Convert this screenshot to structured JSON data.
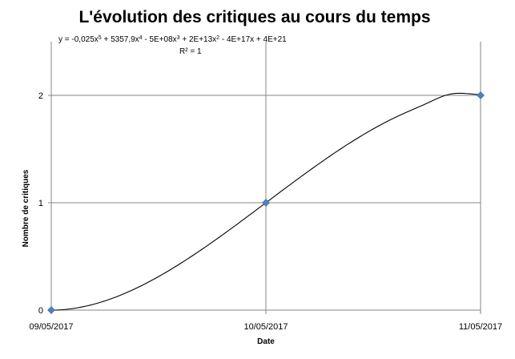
{
  "chart_data": {
    "type": "scatter",
    "title": "L'évolution des critiques au cours du temps",
    "xlabel": "Date",
    "ylabel": "Nombre de critiques",
    "x_categories": [
      "09/05/2017",
      "10/05/2017",
      "11/05/2017"
    ],
    "ylim": [
      0,
      2.5
    ],
    "y_ticks": [
      "0",
      "1",
      "2"
    ],
    "grid": true,
    "legend": "none",
    "series": [
      {
        "x": [
          "09/05/2017",
          "10/05/2017",
          "11/05/2017"
        ],
        "values": [
          0,
          1,
          2
        ],
        "marker": "diamond",
        "color": "#4f81bd"
      }
    ],
    "trendline": {
      "type": "polynomial",
      "color": "#000000",
      "equation_parts": [
        "y = -0,025x",
        "5",
        " + 5357,9x",
        "4",
        " - 5E+08x",
        "3",
        " + 2E+13x",
        "2",
        " - 4E+17x + 4E+21"
      ],
      "r2_text": "R² = 1"
    }
  }
}
